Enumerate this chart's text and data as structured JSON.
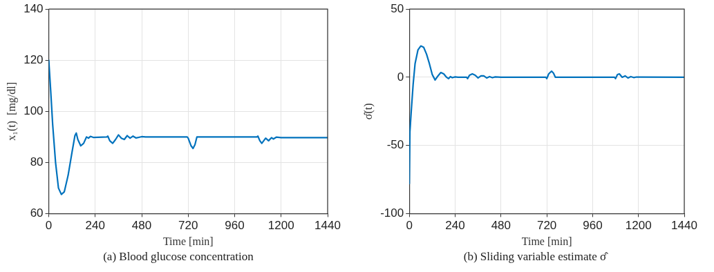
{
  "chart_data": [
    {
      "type": "line",
      "xlabel": "Time [min]",
      "ylabel": "x₁(t)  [mg/dl]",
      "xlim": [
        0,
        1440
      ],
      "xticks": [
        0,
        240,
        480,
        720,
        960,
        1200,
        1440
      ],
      "ylim": [
        60,
        140
      ],
      "yticks": [
        60,
        80,
        100,
        120,
        140
      ],
      "grid": true,
      "legend": false,
      "marker": "none",
      "line_style": "solid",
      "annotations": [
        "(a) Blood glucose concentration"
      ],
      "series": [
        {
          "color": "#0072bd",
          "x": [
            0,
            10,
            20,
            35,
            50,
            65,
            80,
            100,
            120,
            135,
            142,
            150,
            165,
            180,
            195,
            205,
            215,
            230,
            300,
            305,
            315,
            330,
            345,
            360,
            375,
            390,
            405,
            420,
            435,
            450,
            480,
            500,
            715,
            720,
            735,
            745,
            755,
            765,
            1075,
            1080,
            1090,
            1100,
            1110,
            1120,
            1135,
            1150,
            1160,
            1175,
            1200,
            1440
          ],
          "values": [
            120,
            108,
            95,
            80,
            70,
            67.5,
            68.5,
            75,
            84,
            90.5,
            91.5,
            89,
            86.5,
            87.5,
            90,
            89.5,
            90.2,
            89.8,
            90,
            90.3,
            88.5,
            87.5,
            89,
            90.8,
            89.5,
            89,
            90.5,
            89.5,
            90.3,
            89.6,
            90.1,
            90,
            90,
            89.5,
            86.5,
            85.5,
            87,
            90,
            90,
            90.3,
            88.5,
            87.5,
            88.5,
            89.5,
            88.5,
            89.7,
            89.2,
            89.9,
            89.7,
            89.7
          ]
        }
      ]
    },
    {
      "type": "line",
      "xlabel": "Time [min]",
      "ylabel": "σ̂(t)",
      "xlim": [
        0,
        1440
      ],
      "xticks": [
        0,
        240,
        480,
        720,
        960,
        1200,
        1440
      ],
      "ylim": [
        -100,
        50
      ],
      "yticks": [
        -100,
        -50,
        0,
        50
      ],
      "grid": true,
      "legend": false,
      "marker": "none",
      "line_style": "solid",
      "annotations": [
        "(b) Sliding variable estimate σ̂"
      ],
      "series": [
        {
          "color": "#0072bd",
          "x": [
            0,
            3,
            10,
            20,
            30,
            45,
            60,
            75,
            90,
            105,
            120,
            135,
            150,
            165,
            180,
            195,
            205,
            215,
            225,
            240,
            255,
            300,
            305,
            315,
            330,
            345,
            360,
            375,
            390,
            405,
            420,
            435,
            450,
            480,
            715,
            720,
            730,
            745,
            755,
            765,
            1075,
            1080,
            1090,
            1100,
            1115,
            1130,
            1145,
            1160,
            1175,
            1190,
            1440
          ],
          "values": [
            -78,
            -40,
            -25,
            -5,
            10,
            20,
            23,
            22,
            17,
            10,
            2,
            -2,
            1,
            3.5,
            2.5,
            0,
            -1,
            0.5,
            -0.3,
            0.3,
            0,
            0,
            -1,
            1.5,
            2.5,
            1.5,
            -0.5,
            1,
            1,
            -0.5,
            0.5,
            -0.3,
            0.3,
            0,
            0,
            -1,
            2.5,
            4.5,
            3,
            0,
            0,
            -1,
            2,
            2.5,
            0,
            1,
            -0.5,
            0.5,
            -0.2,
            0.2,
            0
          ]
        }
      ]
    }
  ]
}
